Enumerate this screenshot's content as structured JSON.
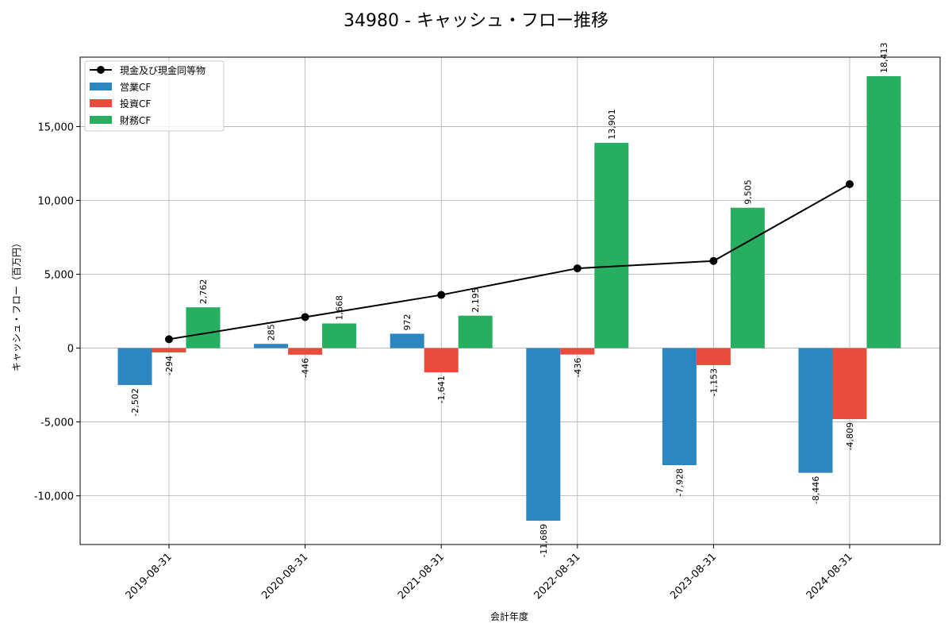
{
  "chart_data": {
    "type": "bar",
    "title": "34980 - キャッシュ・フロー推移",
    "xlabel": "会計年度",
    "ylabel": "キャッシュ・フロー（百万円）",
    "categories": [
      "2019-08-31",
      "2020-08-31",
      "2021-08-31",
      "2022-08-31",
      "2023-08-31",
      "2024-08-31"
    ],
    "ylim": [
      -13300,
      19700
    ],
    "yticks": [
      -10000,
      -5000,
      0,
      5000,
      10000,
      15000
    ],
    "ytick_labels": [
      "-10,000",
      "-5,000",
      "0",
      "5,000",
      "10,000",
      "15,000"
    ],
    "grid": true,
    "legend_position": "top-left",
    "bar_series": [
      {
        "name": "営業CF",
        "color": "#2e86c1",
        "values": [
          -2502,
          285,
          972,
          -11689,
          -7928,
          -8446
        ],
        "labels": [
          "-2,502",
          "285",
          "972",
          "-11,689",
          "-7,928",
          "-8,446"
        ]
      },
      {
        "name": "投資CF",
        "color": "#e74c3c",
        "values": [
          -294,
          -446,
          -1641,
          -436,
          -1153,
          -4809
        ],
        "labels": [
          "-294",
          "-446",
          "-1,641",
          "-436",
          "-1,153",
          "-4,809"
        ]
      },
      {
        "name": "財務CF",
        "color": "#27ae60",
        "values": [
          2762,
          1668,
          2195,
          13901,
          9505,
          18413
        ],
        "labels": [
          "2,762",
          "1,668",
          "2,195",
          "13,901",
          "9,505",
          "18,413"
        ]
      }
    ],
    "line_series": {
      "name": "現金及び現金同等物",
      "color": "#000000",
      "values": [
        600,
        2100,
        3600,
        5400,
        5900,
        11100
      ]
    }
  }
}
